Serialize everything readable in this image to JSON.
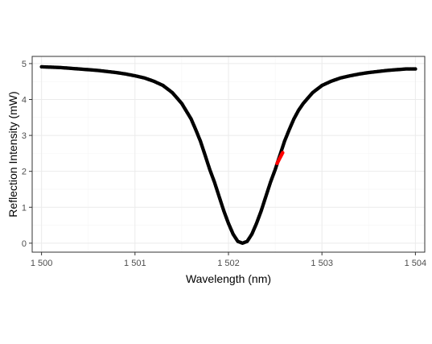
{
  "chart_data": {
    "type": "scatter",
    "title": "",
    "xlabel": "Wavelength (nm)",
    "ylabel": "Reflection Intensity (mW)",
    "xlim": [
      1499.9,
      1504.1
    ],
    "ylim": [
      -0.25,
      5.2
    ],
    "x_ticks": [
      1500,
      1501,
      1502,
      1503,
      1504
    ],
    "x_tick_labels": [
      "1 500",
      "1 501",
      "1 502",
      "1 503",
      "1 504"
    ],
    "y_ticks": [
      0,
      1,
      2,
      3,
      4,
      5
    ],
    "y_tick_labels": [
      "0",
      "1",
      "2",
      "3",
      "4",
      "5"
    ],
    "grid": true,
    "legend": "none",
    "colors": {
      "main_series": "#000000",
      "highlight_series": "#ff0000",
      "grid_major": "#ebebeb",
      "grid_minor": "#f5f5f5",
      "panel_border": "#333333"
    },
    "series": [
      {
        "color": "#000000",
        "x": [
          1500.0,
          1500.1,
          1500.2,
          1500.3,
          1500.4,
          1500.5,
          1500.6,
          1500.7,
          1500.8,
          1500.9,
          1501.0,
          1501.1,
          1501.2,
          1501.3,
          1501.4,
          1501.5,
          1501.6,
          1501.65,
          1501.7,
          1501.75,
          1501.8,
          1501.85,
          1501.9,
          1501.95,
          1502.0,
          1502.05,
          1502.1,
          1502.15,
          1502.2,
          1502.25,
          1502.3,
          1502.35,
          1502.4,
          1502.45,
          1502.5,
          1502.6,
          1502.65,
          1502.7,
          1502.75,
          1502.8,
          1502.9,
          1503.0,
          1503.1,
          1503.2,
          1503.3,
          1503.4,
          1503.5,
          1503.6,
          1503.7,
          1503.8,
          1503.9,
          1504.0
        ],
        "y": [
          4.91,
          4.9,
          4.89,
          4.87,
          4.85,
          4.83,
          4.81,
          4.78,
          4.75,
          4.71,
          4.66,
          4.6,
          4.51,
          4.39,
          4.19,
          3.89,
          3.46,
          3.16,
          2.84,
          2.45,
          2.05,
          1.7,
          1.3,
          0.9,
          0.55,
          0.25,
          0.05,
          0.0,
          0.05,
          0.25,
          0.55,
          0.9,
          1.3,
          1.7,
          2.05,
          2.84,
          3.16,
          3.46,
          3.7,
          3.89,
          4.19,
          4.39,
          4.51,
          4.6,
          4.66,
          4.71,
          4.75,
          4.78,
          4.81,
          4.83,
          4.85,
          4.85
        ]
      },
      {
        "color": "#ff0000",
        "x": [
          1502.52,
          1502.54,
          1502.56,
          1502.58
        ],
        "y": [
          2.22,
          2.32,
          2.42,
          2.52
        ]
      }
    ]
  }
}
